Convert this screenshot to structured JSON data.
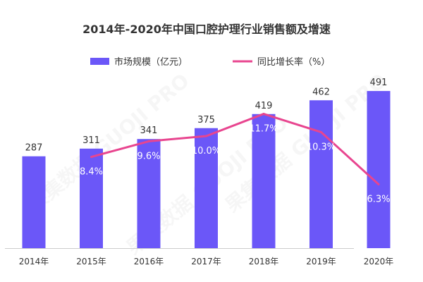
{
  "chart_data": {
    "type": "bar",
    "title": "2014年-2020年中国口腔护理行业销售额及增速",
    "categories": [
      "2014年",
      "2015年",
      "2016年",
      "2017年",
      "2018年",
      "2019年",
      "2020年"
    ],
    "series": [
      {
        "name": "市场规模（亿元）",
        "type": "bar",
        "axis": "left",
        "color": "#6B57F8",
        "values": [
          287,
          311,
          341,
          375,
          419,
          462,
          491
        ],
        "labels": [
          "287",
          "311",
          "341",
          "375",
          "419",
          "462",
          "491"
        ]
      },
      {
        "name": "同比增长率（%）",
        "type": "line",
        "axis": "right",
        "color": "#E8458F",
        "values": [
          null,
          8.4,
          9.6,
          10.0,
          11.7,
          10.3,
          6.3
        ],
        "labels": [
          "",
          "8.4%",
          "9.6%",
          "10.0%",
          "11.7%",
          "10.3%",
          "6.3%"
        ]
      }
    ],
    "ylim": [
      0,
      500
    ],
    "y2lim": [
      0,
      14
    ],
    "grid": false,
    "legend": "top-center"
  },
  "watermark": "果集数据 GUOJI PRO"
}
